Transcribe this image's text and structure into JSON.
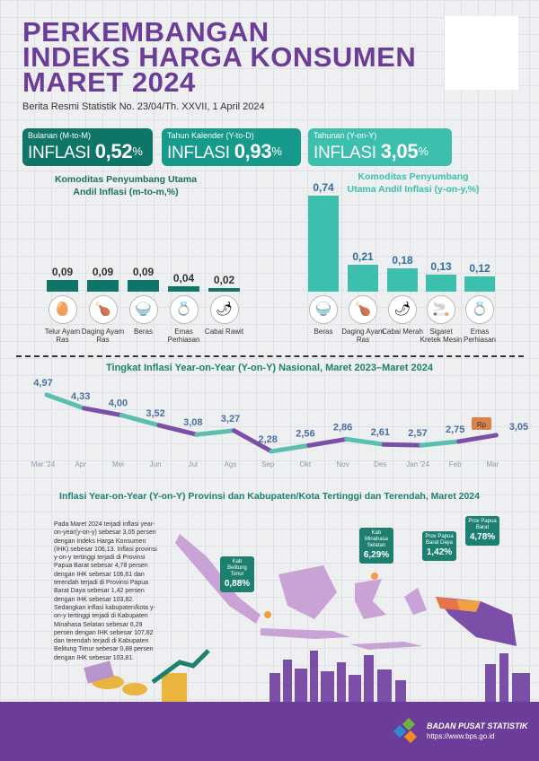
{
  "header": {
    "title_lines": [
      "PERKEMBANGAN",
      "INDEKS HARGA KONSUMEN",
      "MARET 2024"
    ],
    "subtitle": "Berita Resmi Statistik No. 23/04/Th. XXVII, 1 April 2024"
  },
  "boxes": [
    {
      "label": "Bulanan (M-to-M)",
      "word": "INFLASI",
      "value": "0,52",
      "unit": "%",
      "color": "#0f7566"
    },
    {
      "label": "Tahun Kalender (Y-to-D)",
      "word": "INFLASI",
      "value": "0,93",
      "unit": "%",
      "color": "#159a8b"
    },
    {
      "label": "Tahunan (Y-on-Y)",
      "word": "INFLASI",
      "value": "3,05",
      "unit": "%",
      "color": "#3dbfae"
    }
  ],
  "chart_data": [
    {
      "type": "bar",
      "title": "Komoditas Penyumbang Utama Andil Inflasi (m-to-m,%)",
      "categories": [
        "Telur Ayam Ras",
        "Daging Ayam Ras",
        "Beras",
        "Emas Perhiasan",
        "Cabai Rawit"
      ],
      "values": [
        0.09,
        0.09,
        0.09,
        0.04,
        0.02
      ],
      "labels": [
        "0,09",
        "0,09",
        "0,09",
        "0,04",
        "0,02"
      ],
      "icons": [
        "egg-icon",
        "chicken-icon",
        "rice-icon",
        "gold-icon",
        "chili-icon"
      ]
    },
    {
      "type": "bar",
      "title": "Komoditas Penyumbang Utama Andil Inflasi (y-on-y,%)",
      "categories": [
        "Beras",
        "Daging Ayam Ras",
        "Cabai Merah",
        "Sigaret Kretek Mesin",
        "Emas Perhiasan"
      ],
      "values": [
        0.74,
        0.21,
        0.18,
        0.13,
        0.12
      ],
      "labels": [
        "0,74",
        "0,21",
        "0,18",
        "0,13",
        "0,12"
      ],
      "icons": [
        "rice-icon",
        "chicken-icon",
        "chili-icon",
        "cigarette-icon",
        "gold-icon"
      ]
    },
    {
      "type": "line",
      "title": "Tingkat Inflasi Year-on-Year (Y-on-Y) Nasional, Maret 2023–Maret 2024",
      "x": [
        "Mar '24",
        "Apr",
        "Mei",
        "Jun",
        "Jul",
        "Ags",
        "Sep",
        "Okt",
        "Nov",
        "Des",
        "Jan '24",
        "Feb",
        "Mar"
      ],
      "values": [
        4.97,
        4.33,
        4.0,
        3.52,
        3.08,
        3.27,
        2.28,
        2.56,
        2.86,
        2.61,
        2.57,
        2.75,
        3.05
      ],
      "labels": [
        "4,97",
        "4,33",
        "4,00",
        "3,52",
        "3,08",
        "3,27",
        "2,28",
        "2,56",
        "2,86",
        "2,61",
        "2,57",
        "2,75",
        "3,05"
      ],
      "colors": [
        "#5bbfb0",
        "#7b4fa8"
      ]
    }
  ],
  "map": {
    "title": "Inflasi Year-on-Year (Y-on-Y) Provinsi dan Kabupaten/Kota Tertinggi dan Terendah, Maret 2024",
    "paragraph": "Pada Maret 2024 terjadi inflasi year-on-year(y-on-y) sebesar 3,05 persen dengan Indeks Harga Konsumen (IHK) sebesar 106,13. Inflasi provinsi y-on-y tertinggi terjadi di Provinsi Papua Barat sebesar 4,78 persen dengan IHK sebesar 106,61 dan terendah terjadi di Provinsi Papua Barat Daya sebesar 1,42 persen dengan IHK sebesar 103,82. Sedangkan inflasi kabupaten/kota y-on-y tertinggi terjadi di Kabupaten Minahasa Selatan sebesar 6,29 persen dengan IHK sebesar 107,82 dan terendah terjadi di Kabupaten Belitung Timur sebesar 0,88 persen dengan IHK sebesar 103,81.",
    "callouts": [
      {
        "name": "Kab Belitung Timur",
        "value": "0,88%"
      },
      {
        "name": "Kab Minahasa Selatan",
        "value": "6,29%"
      },
      {
        "name": "Prov Papua Barat Daya",
        "value": "1,42%"
      },
      {
        "name": "Prov Papua Barat",
        "value": "4,78%"
      }
    ]
  },
  "footer": {
    "org": "BADAN PUSAT STATISTIK",
    "url": "https://www.bps.go.id",
    "truck_label": "Rp"
  }
}
